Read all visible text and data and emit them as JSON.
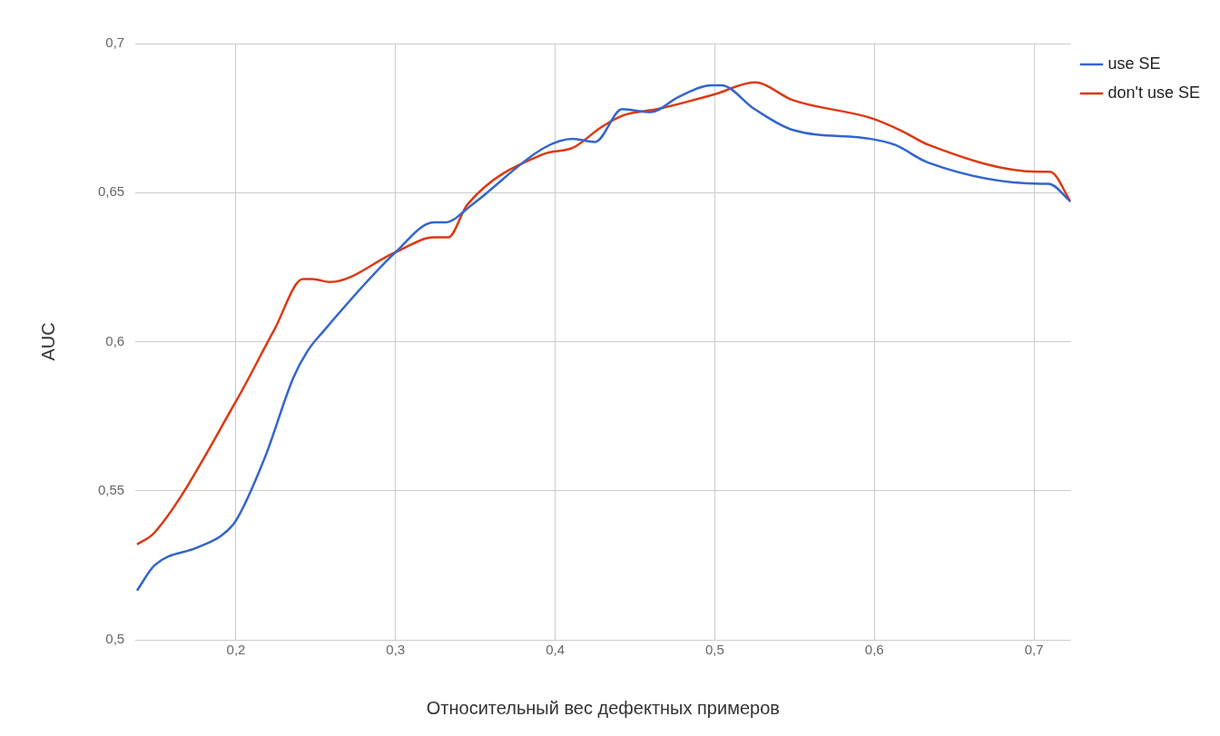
{
  "chart_data": {
    "type": "line",
    "xlabel": "Относительный вес дефектных примеров",
    "ylabel": "AUC",
    "xlim": [
      0.137,
      0.723
    ],
    "xticks": [
      {
        "value": 0.2,
        "label": "0,2"
      },
      {
        "value": 0.3,
        "label": "0,3"
      },
      {
        "value": 0.4,
        "label": "0,4"
      },
      {
        "value": 0.5,
        "label": "0,5"
      },
      {
        "value": 0.6,
        "label": "0,6"
      },
      {
        "value": 0.7,
        "label": "0,7"
      }
    ],
    "ylim": [
      0.5,
      0.7
    ],
    "yticks": [
      {
        "value": 0.5,
        "label": "0,5"
      },
      {
        "value": 0.55,
        "label": "0,55"
      },
      {
        "value": 0.6,
        "label": "0,6"
      },
      {
        "value": 0.65,
        "label": "0,65"
      },
      {
        "value": 0.7,
        "label": "0,7"
      }
    ],
    "grid": true,
    "legend": "top right",
    "marker": "none",
    "line_style": "solid",
    "series": [
      {
        "name": "use SE",
        "color": "#3366cc",
        "x": [
          0.138,
          0.149,
          0.176,
          0.191,
          0.2,
          0.218,
          0.236,
          0.245,
          0.254,
          0.3,
          0.324,
          0.331,
          0.348,
          0.393,
          0.411,
          0.425,
          0.442,
          0.46,
          0.477,
          0.498,
          0.504,
          0.525,
          0.549,
          0.598,
          0.613,
          0.634,
          0.704,
          0.709,
          0.723
        ],
        "values": [
          0.5165,
          0.525,
          0.531,
          0.535,
          0.54,
          0.561,
          0.588,
          0.597,
          0.603,
          0.63,
          0.64,
          0.64,
          0.646,
          0.665,
          0.668,
          0.667,
          0.678,
          0.677,
          0.682,
          0.686,
          0.686,
          0.678,
          0.671,
          0.668,
          0.666,
          0.66,
          0.653,
          0.653,
          0.647
        ]
      },
      {
        "name": "don't use SE",
        "color": "#dc3912",
        "x": [
          0.138,
          0.149,
          0.2,
          0.224,
          0.242,
          0.248,
          0.259,
          0.3,
          0.324,
          0.333,
          0.345,
          0.393,
          0.411,
          0.429,
          0.443,
          0.464,
          0.5,
          0.525,
          0.549,
          0.598,
          0.616,
          0.634,
          0.703,
          0.71,
          0.723
        ],
        "values": [
          0.532,
          0.536,
          0.58,
          0.604,
          0.621,
          0.621,
          0.62,
          0.63,
          0.635,
          0.635,
          0.646,
          0.663,
          0.665,
          0.672,
          0.676,
          0.678,
          0.683,
          0.687,
          0.681,
          0.675,
          0.671,
          0.666,
          0.657,
          0.657,
          0.647
        ]
      }
    ]
  }
}
